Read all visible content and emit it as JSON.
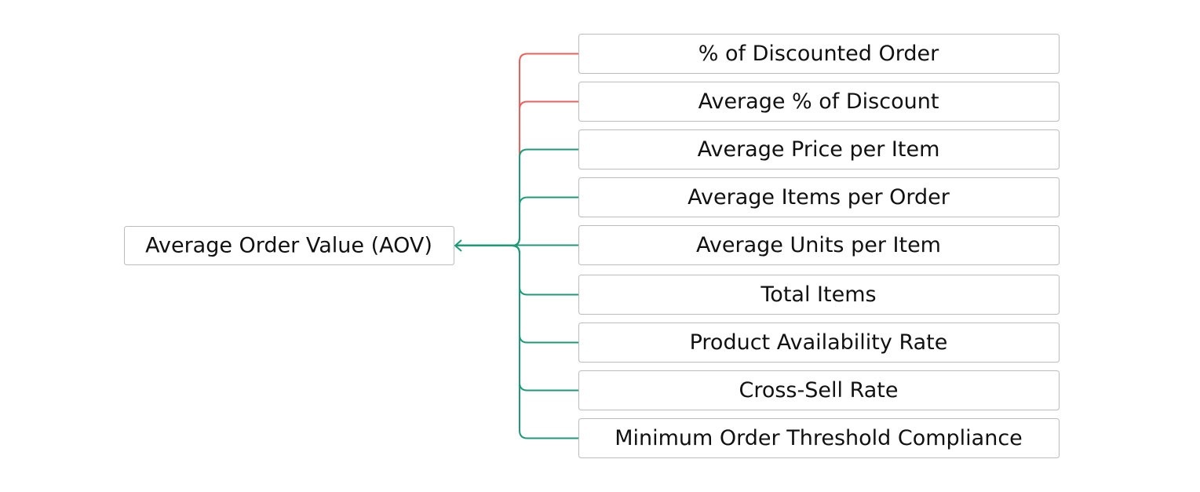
{
  "root": {
    "label": "Average Order Value (AOV)"
  },
  "nodes": [
    {
      "label": "% of Discounted Order",
      "color": "#e8615d"
    },
    {
      "label": "Average % of Discount",
      "color": "#e8615d"
    },
    {
      "label": "Average Price per Item",
      "color": "#1f9a78"
    },
    {
      "label": "Average Items per Order",
      "color": "#1f9a78"
    },
    {
      "label": "Average Units per Item",
      "color": "#1f9a78"
    },
    {
      "label": "Total Items",
      "color": "#1f9a78"
    },
    {
      "label": "Product Availability Rate",
      "color": "#1f9a78"
    },
    {
      "label": "Cross-Sell Rate",
      "color": "#1f9a78"
    },
    {
      "label": "Minimum Order Threshold Compliance",
      "color": "#1f9a78"
    }
  ]
}
